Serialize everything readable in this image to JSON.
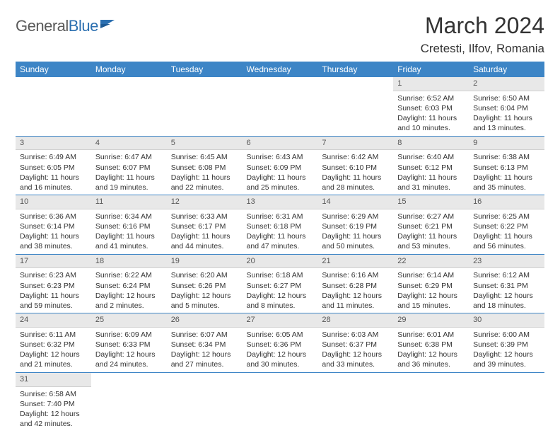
{
  "logo": {
    "text1": "General",
    "text2": "Blue"
  },
  "title": "March 2024",
  "location": "Cretesti, Ilfov, Romania",
  "colors": {
    "header_bg": "#3d85c6",
    "header_text": "#ffffff",
    "daynum_bg": "#e8e8e8",
    "row_border": "#3d85c6",
    "logo_gray": "#5a5a5a",
    "logo_blue": "#2b6fb0"
  },
  "weekdays": [
    "Sunday",
    "Monday",
    "Tuesday",
    "Wednesday",
    "Thursday",
    "Friday",
    "Saturday"
  ],
  "weeks": [
    [
      null,
      null,
      null,
      null,
      null,
      {
        "n": "1",
        "rise": "Sunrise: 6:52 AM",
        "set": "Sunset: 6:03 PM",
        "dl": "Daylight: 11 hours and 10 minutes."
      },
      {
        "n": "2",
        "rise": "Sunrise: 6:50 AM",
        "set": "Sunset: 6:04 PM",
        "dl": "Daylight: 11 hours and 13 minutes."
      }
    ],
    [
      {
        "n": "3",
        "rise": "Sunrise: 6:49 AM",
        "set": "Sunset: 6:05 PM",
        "dl": "Daylight: 11 hours and 16 minutes."
      },
      {
        "n": "4",
        "rise": "Sunrise: 6:47 AM",
        "set": "Sunset: 6:07 PM",
        "dl": "Daylight: 11 hours and 19 minutes."
      },
      {
        "n": "5",
        "rise": "Sunrise: 6:45 AM",
        "set": "Sunset: 6:08 PM",
        "dl": "Daylight: 11 hours and 22 minutes."
      },
      {
        "n": "6",
        "rise": "Sunrise: 6:43 AM",
        "set": "Sunset: 6:09 PM",
        "dl": "Daylight: 11 hours and 25 minutes."
      },
      {
        "n": "7",
        "rise": "Sunrise: 6:42 AM",
        "set": "Sunset: 6:10 PM",
        "dl": "Daylight: 11 hours and 28 minutes."
      },
      {
        "n": "8",
        "rise": "Sunrise: 6:40 AM",
        "set": "Sunset: 6:12 PM",
        "dl": "Daylight: 11 hours and 31 minutes."
      },
      {
        "n": "9",
        "rise": "Sunrise: 6:38 AM",
        "set": "Sunset: 6:13 PM",
        "dl": "Daylight: 11 hours and 35 minutes."
      }
    ],
    [
      {
        "n": "10",
        "rise": "Sunrise: 6:36 AM",
        "set": "Sunset: 6:14 PM",
        "dl": "Daylight: 11 hours and 38 minutes."
      },
      {
        "n": "11",
        "rise": "Sunrise: 6:34 AM",
        "set": "Sunset: 6:16 PM",
        "dl": "Daylight: 11 hours and 41 minutes."
      },
      {
        "n": "12",
        "rise": "Sunrise: 6:33 AM",
        "set": "Sunset: 6:17 PM",
        "dl": "Daylight: 11 hours and 44 minutes."
      },
      {
        "n": "13",
        "rise": "Sunrise: 6:31 AM",
        "set": "Sunset: 6:18 PM",
        "dl": "Daylight: 11 hours and 47 minutes."
      },
      {
        "n": "14",
        "rise": "Sunrise: 6:29 AM",
        "set": "Sunset: 6:19 PM",
        "dl": "Daylight: 11 hours and 50 minutes."
      },
      {
        "n": "15",
        "rise": "Sunrise: 6:27 AM",
        "set": "Sunset: 6:21 PM",
        "dl": "Daylight: 11 hours and 53 minutes."
      },
      {
        "n": "16",
        "rise": "Sunrise: 6:25 AM",
        "set": "Sunset: 6:22 PM",
        "dl": "Daylight: 11 hours and 56 minutes."
      }
    ],
    [
      {
        "n": "17",
        "rise": "Sunrise: 6:23 AM",
        "set": "Sunset: 6:23 PM",
        "dl": "Daylight: 11 hours and 59 minutes."
      },
      {
        "n": "18",
        "rise": "Sunrise: 6:22 AM",
        "set": "Sunset: 6:24 PM",
        "dl": "Daylight: 12 hours and 2 minutes."
      },
      {
        "n": "19",
        "rise": "Sunrise: 6:20 AM",
        "set": "Sunset: 6:26 PM",
        "dl": "Daylight: 12 hours and 5 minutes."
      },
      {
        "n": "20",
        "rise": "Sunrise: 6:18 AM",
        "set": "Sunset: 6:27 PM",
        "dl": "Daylight: 12 hours and 8 minutes."
      },
      {
        "n": "21",
        "rise": "Sunrise: 6:16 AM",
        "set": "Sunset: 6:28 PM",
        "dl": "Daylight: 12 hours and 11 minutes."
      },
      {
        "n": "22",
        "rise": "Sunrise: 6:14 AM",
        "set": "Sunset: 6:29 PM",
        "dl": "Daylight: 12 hours and 15 minutes."
      },
      {
        "n": "23",
        "rise": "Sunrise: 6:12 AM",
        "set": "Sunset: 6:31 PM",
        "dl": "Daylight: 12 hours and 18 minutes."
      }
    ],
    [
      {
        "n": "24",
        "rise": "Sunrise: 6:11 AM",
        "set": "Sunset: 6:32 PM",
        "dl": "Daylight: 12 hours and 21 minutes."
      },
      {
        "n": "25",
        "rise": "Sunrise: 6:09 AM",
        "set": "Sunset: 6:33 PM",
        "dl": "Daylight: 12 hours and 24 minutes."
      },
      {
        "n": "26",
        "rise": "Sunrise: 6:07 AM",
        "set": "Sunset: 6:34 PM",
        "dl": "Daylight: 12 hours and 27 minutes."
      },
      {
        "n": "27",
        "rise": "Sunrise: 6:05 AM",
        "set": "Sunset: 6:36 PM",
        "dl": "Daylight: 12 hours and 30 minutes."
      },
      {
        "n": "28",
        "rise": "Sunrise: 6:03 AM",
        "set": "Sunset: 6:37 PM",
        "dl": "Daylight: 12 hours and 33 minutes."
      },
      {
        "n": "29",
        "rise": "Sunrise: 6:01 AM",
        "set": "Sunset: 6:38 PM",
        "dl": "Daylight: 12 hours and 36 minutes."
      },
      {
        "n": "30",
        "rise": "Sunrise: 6:00 AM",
        "set": "Sunset: 6:39 PM",
        "dl": "Daylight: 12 hours and 39 minutes."
      }
    ],
    [
      {
        "n": "31",
        "rise": "Sunrise: 6:58 AM",
        "set": "Sunset: 7:40 PM",
        "dl": "Daylight: 12 hours and 42 minutes."
      },
      null,
      null,
      null,
      null,
      null,
      null
    ]
  ]
}
